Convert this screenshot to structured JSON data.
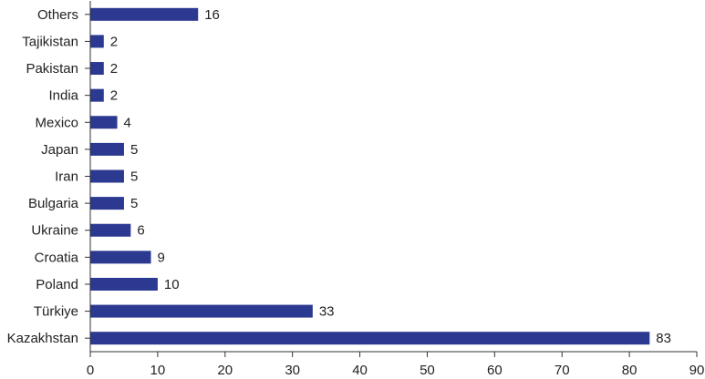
{
  "chart_data": {
    "type": "bar",
    "orientation": "horizontal",
    "title": "",
    "xlabel": "",
    "ylabel": "",
    "categories": [
      "Others",
      "Tajikistan",
      "Pakistan",
      "India",
      "Mexico",
      "Japan",
      "Iran",
      "Bulgaria",
      "Ukraine",
      "Croatia",
      "Poland",
      "Türkiye",
      "Kazakhstan"
    ],
    "values": [
      16,
      2,
      2,
      2,
      4,
      5,
      5,
      5,
      6,
      9,
      10,
      33,
      83
    ],
    "xlim": [
      0,
      90
    ],
    "xticks": [
      0,
      10,
      20,
      30,
      40,
      50,
      60,
      70,
      80,
      90
    ],
    "grid": false,
    "legend": "none",
    "bar_color": "#2b3990"
  }
}
